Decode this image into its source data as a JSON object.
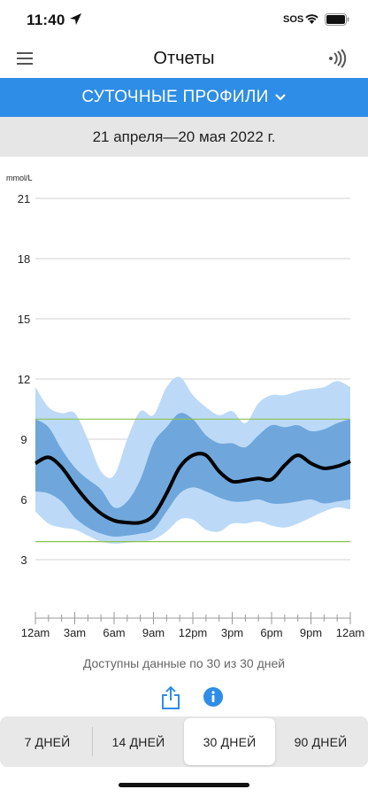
{
  "status_bar": {
    "time": "11:40",
    "sos": "SOS"
  },
  "nav": {
    "title": "Отчеты",
    "menu_icon": "menu-icon",
    "nfc_icon": "nfc-scan-icon"
  },
  "report_selector": {
    "label": "СУТОЧНЫЕ ПРОФИЛИ",
    "icon": "chevron-down-icon"
  },
  "date_range": "21 апреля—20 мая 2022 г.",
  "chart_data": {
    "type": "area",
    "ylabel": "mmol/L",
    "ylim": [
      0,
      21
    ],
    "y_ticks": [
      "21",
      "18",
      "15",
      "12",
      "9",
      "6",
      "3"
    ],
    "x_ticks": [
      "12am",
      "3am",
      "6am",
      "9am",
      "12pm",
      "3pm",
      "6pm",
      "9pm",
      "12am"
    ],
    "x_hours": [
      0,
      1,
      2,
      3,
      4,
      5,
      6,
      7,
      8,
      9,
      10,
      11,
      12,
      13,
      14,
      15,
      16,
      17,
      18,
      19,
      20,
      21,
      22,
      23,
      24
    ],
    "target_range": [
      3.9,
      10.0
    ],
    "colors": {
      "outer_band": "#bcdaf7",
      "inner_band": "#6fa7dc",
      "median": "#000000",
      "target": "#8bc34a",
      "grid": "#d0d0d0"
    },
    "series": [
      {
        "values": [
          11.6,
          10.6,
          10.3,
          10.3,
          9.0,
          7.4,
          7.2,
          9.0,
          10.4,
          10.2,
          11.6,
          12.1,
          11.2,
          10.6,
          10.2,
          10.4,
          9.8,
          10.8,
          11.2,
          11.2,
          11.4,
          11.5,
          11.6,
          11.9,
          11.6
        ]
      },
      {
        "values": [
          10.0,
          9.6,
          8.5,
          7.6,
          7.0,
          6.5,
          5.6,
          5.9,
          7.0,
          8.8,
          9.6,
          10.3,
          10.0,
          9.2,
          8.8,
          8.8,
          8.6,
          9.2,
          9.7,
          9.6,
          9.7,
          9.4,
          9.5,
          9.8,
          10.0
        ]
      },
      {
        "values": [
          7.8,
          8.1,
          7.6,
          6.7,
          5.9,
          5.3,
          4.95,
          4.85,
          4.85,
          5.2,
          6.3,
          7.6,
          8.2,
          8.2,
          7.4,
          6.9,
          6.95,
          7.05,
          7.0,
          7.7,
          8.2,
          7.8,
          7.55,
          7.65,
          7.9
        ]
      },
      {
        "values": [
          6.4,
          6.3,
          5.9,
          5.1,
          4.6,
          4.3,
          4.15,
          4.2,
          4.3,
          4.5,
          5.4,
          6.3,
          6.6,
          6.4,
          6.1,
          5.9,
          5.9,
          6.0,
          5.8,
          5.8,
          5.9,
          6.0,
          5.8,
          5.9,
          6.0
        ]
      },
      {
        "values": [
          5.4,
          4.8,
          4.6,
          4.5,
          4.2,
          3.9,
          3.8,
          3.85,
          3.9,
          4.0,
          4.4,
          5.0,
          5.0,
          4.5,
          4.4,
          4.8,
          4.8,
          4.9,
          4.7,
          4.6,
          4.8,
          5.1,
          5.4,
          5.6,
          5.5
        ]
      }
    ]
  },
  "availability": "Доступны данные по 30 из 30 дней",
  "actions": {
    "share_icon": "share-icon",
    "info_icon": "info-icon"
  },
  "period_tabs": [
    {
      "label": "7 ДНЕЙ",
      "active": false
    },
    {
      "label": "14 ДНЕЙ",
      "active": false
    },
    {
      "label": "30 ДНЕЙ",
      "active": true
    },
    {
      "label": "90 ДНЕЙ",
      "active": false
    }
  ]
}
